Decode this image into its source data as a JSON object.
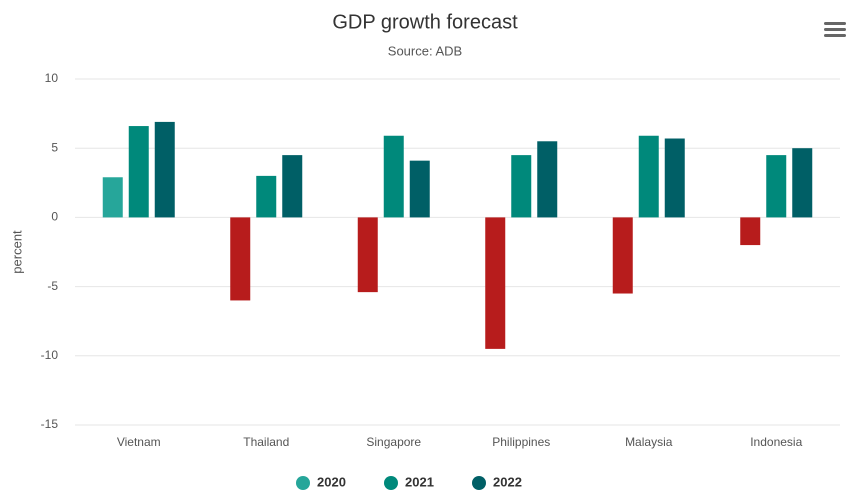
{
  "chart_data": {
    "type": "bar",
    "title": "GDP growth forecast",
    "subtitle": "Source: ADB",
    "y_label": "percent",
    "categories": [
      "Vietnam",
      "Thailand",
      "Singapore",
      "Philippines",
      "Malaysia",
      "Indonesia"
    ],
    "series": [
      {
        "name": "2020",
        "color": "#26a69a",
        "negative_color": "#b71c1c",
        "values": [
          2.9,
          -6.0,
          -5.4,
          -9.5,
          -5.5,
          -2.0
        ]
      },
      {
        "name": "2021",
        "color": "#00897b",
        "values": [
          6.6,
          3.0,
          5.9,
          4.5,
          5.9,
          4.5
        ]
      },
      {
        "name": "2022",
        "color": "#005f66",
        "values": [
          6.9,
          4.5,
          4.1,
          5.5,
          5.7,
          5.0
        ]
      }
    ],
    "ylim": [
      -15,
      10
    ],
    "yticks": [
      -15,
      -10,
      -5,
      0,
      5,
      10
    ],
    "grid": true,
    "legend": "bottom"
  }
}
